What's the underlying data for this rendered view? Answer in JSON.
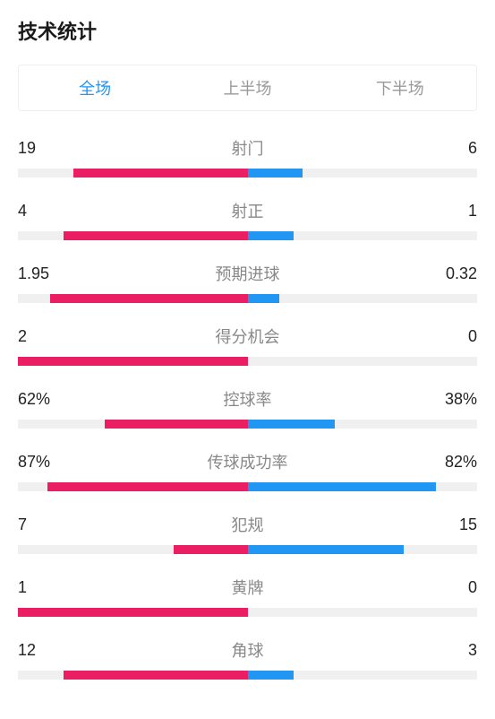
{
  "title": "技术统计",
  "tabs": [
    {
      "label": "全场",
      "active": true
    },
    {
      "label": "上半场",
      "active": false
    },
    {
      "label": "下半场",
      "active": false
    }
  ],
  "colors": {
    "left_bar": "#e91e63",
    "right_bar": "#2196f3",
    "track": "#f0f0f0",
    "active_tab": "#2196f3",
    "inactive_tab": "#999999",
    "label": "#888888",
    "value": "#222222",
    "title": "#1a1a1a"
  },
  "stats": [
    {
      "label": "射门",
      "left_val": "19",
      "right_val": "6",
      "left_pct": 76,
      "right_pct": 24
    },
    {
      "label": "射正",
      "left_val": "4",
      "right_val": "1",
      "left_pct": 80,
      "right_pct": 20
    },
    {
      "label": "预期进球",
      "left_val": "1.95",
      "right_val": "0.32",
      "left_pct": 86,
      "right_pct": 14
    },
    {
      "label": "得分机会",
      "left_val": "2",
      "right_val": "0",
      "left_pct": 100,
      "right_pct": 0
    },
    {
      "label": "控球率",
      "left_val": "62%",
      "right_val": "38%",
      "left_pct": 62,
      "right_pct": 38
    },
    {
      "label": "传球成功率",
      "left_val": "87%",
      "right_val": "82%",
      "left_pct": 87,
      "right_pct": 82
    },
    {
      "label": "犯规",
      "left_val": "7",
      "right_val": "15",
      "left_pct": 32,
      "right_pct": 68
    },
    {
      "label": "黄牌",
      "left_val": "1",
      "right_val": "0",
      "left_pct": 100,
      "right_pct": 0
    },
    {
      "label": "角球",
      "left_val": "12",
      "right_val": "3",
      "left_pct": 80,
      "right_pct": 20
    }
  ]
}
